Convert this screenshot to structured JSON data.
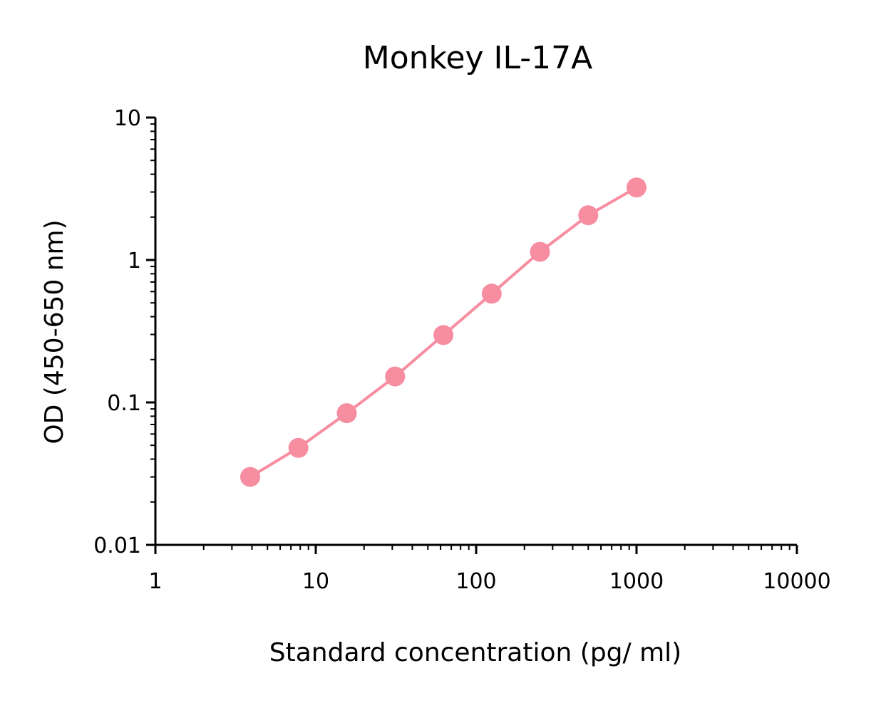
{
  "chart_data": {
    "type": "line",
    "title": "Monkey IL-17A",
    "xlabel": "Standard concentration (pg/ ml)",
    "ylabel": "OD (450-650 nm)",
    "x_scale": "log",
    "y_scale": "log",
    "xlim": [
      1,
      10000
    ],
    "ylim": [
      0.01,
      10
    ],
    "x_ticks": [
      "1",
      "10",
      "100",
      "1000",
      "10000"
    ],
    "y_ticks": [
      "0.01",
      "0.1",
      "1",
      "10"
    ],
    "grid": false,
    "color": "#F78DA0",
    "series": [
      {
        "x": [
          3.9,
          7.8,
          15.6,
          31.25,
          62.5,
          125,
          250,
          500,
          1000
        ],
        "y": [
          0.03,
          0.048,
          0.084,
          0.152,
          0.297,
          0.58,
          1.14,
          2.06,
          3.23
        ]
      }
    ]
  }
}
